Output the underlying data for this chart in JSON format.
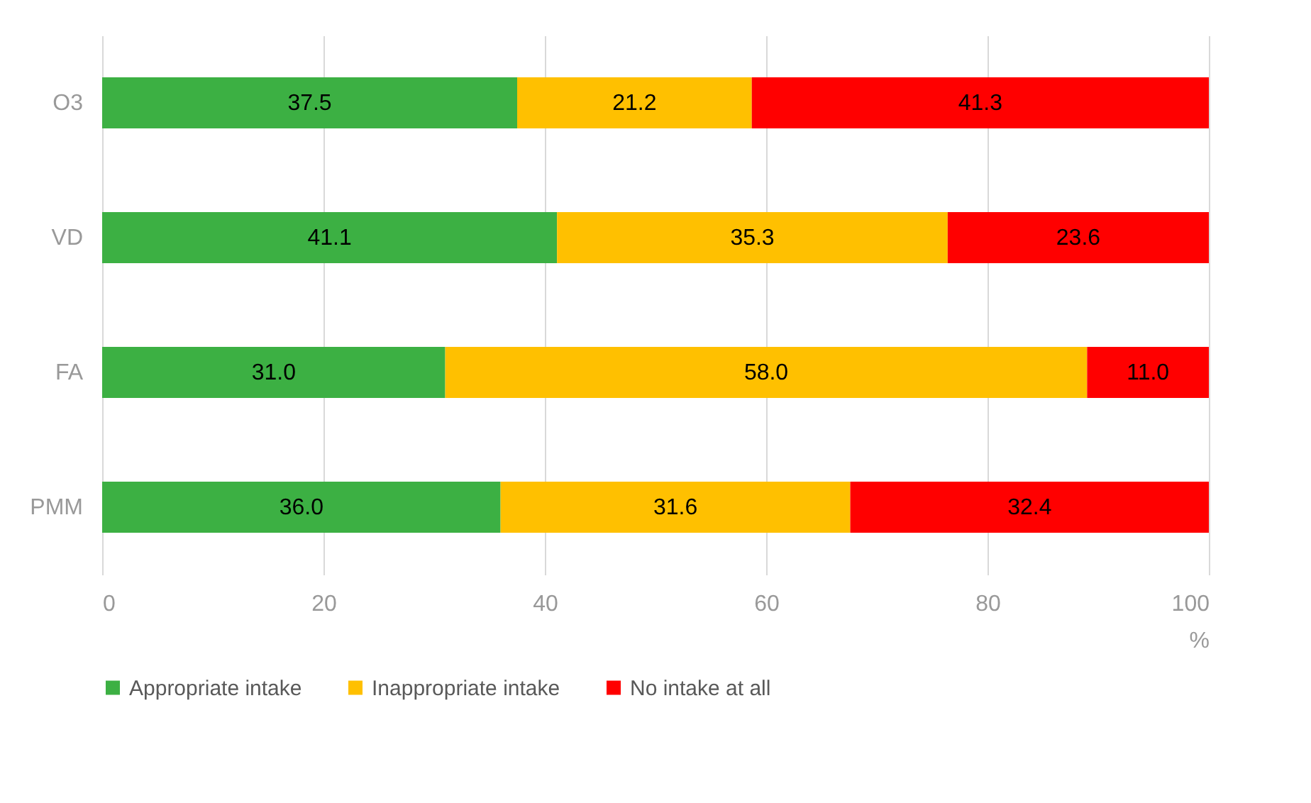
{
  "chart_data": {
    "type": "bar",
    "orientation": "horizontal",
    "stacked": true,
    "categories": [
      "O3",
      "VD",
      "FA",
      "PMM"
    ],
    "series": [
      {
        "name": "Appropriate intake",
        "color": "#3cb043",
        "values": [
          37.5,
          41.1,
          31.0,
          36.0
        ],
        "value_labels": [
          "37.5",
          "41.1",
          "31.0",
          "36.0"
        ]
      },
      {
        "name": "Inappropriate intake",
        "color": "#ffc000",
        "values": [
          21.2,
          35.3,
          58.0,
          31.6
        ],
        "value_labels": [
          "21.2",
          "35.3",
          "58.0",
          "31.6"
        ]
      },
      {
        "name": "No intake at all",
        "color": "#ff0000",
        "values": [
          41.3,
          23.6,
          11.0,
          32.4
        ],
        "value_labels": [
          "41.3",
          "23.6",
          "11.0",
          "32.4"
        ]
      }
    ],
    "xlim": [
      0,
      100
    ],
    "xticks": [
      0,
      20,
      40,
      60,
      80,
      100
    ],
    "xlabel": "%",
    "grid": "x",
    "legend": "bottom"
  }
}
